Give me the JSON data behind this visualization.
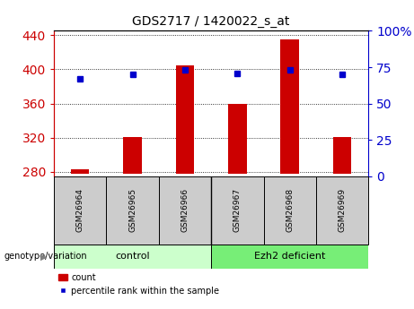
{
  "title": "GDS2717 / 1420022_s_at",
  "samples": [
    "GSM26964",
    "GSM26965",
    "GSM26966",
    "GSM26967",
    "GSM26968",
    "GSM26969"
  ],
  "counts": [
    283,
    321,
    405,
    360,
    435,
    321
  ],
  "percentiles": [
    67,
    70,
    73,
    71,
    73,
    70
  ],
  "ylim_left": [
    275,
    445
  ],
  "ylim_right": [
    0,
    100
  ],
  "yticks_left": [
    280,
    320,
    360,
    400,
    440
  ],
  "yticks_right": [
    0,
    25,
    50,
    75,
    100
  ],
  "ytick_labels_right": [
    "0",
    "25",
    "50",
    "75",
    "100%"
  ],
  "bar_color": "#cc0000",
  "dot_color": "#0000cc",
  "bar_baseline": 278,
  "groups": [
    {
      "label": "control",
      "indices": [
        0,
        1,
        2
      ],
      "color": "#ccffcc"
    },
    {
      "label": "Ezh2 deficient",
      "indices": [
        3,
        4,
        5
      ],
      "color": "#77ee77"
    }
  ],
  "group_label": "genotype/variation",
  "legend_count": "count",
  "legend_percentile": "percentile rank within the sample",
  "bar_color_red": "#cc0000",
  "dot_color_blue": "#0000cc",
  "sample_box_color": "#cccccc",
  "bar_width": 0.35
}
